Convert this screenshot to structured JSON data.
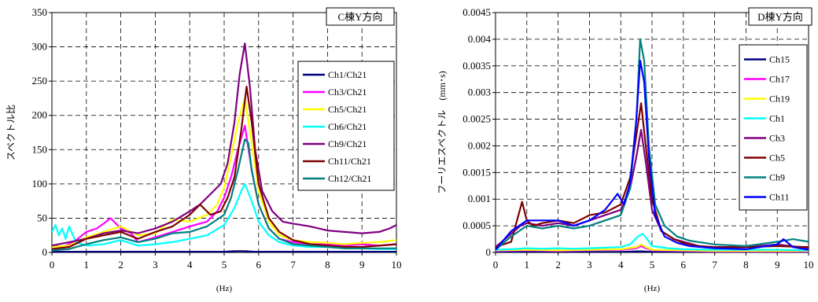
{
  "chart_data": [
    {
      "type": "line",
      "title": "C棟Y方向",
      "xlabel": "(Hz)",
      "ylabel": "スペクトル比",
      "xlim": [
        0,
        10
      ],
      "ylim": [
        0,
        350
      ],
      "xticks": [
        "0",
        "1",
        "2",
        "3",
        "4",
        "5",
        "6",
        "7",
        "8",
        "9",
        "10"
      ],
      "yticks": [
        "0",
        "50",
        "100",
        "150",
        "200",
        "250",
        "300",
        "350"
      ],
      "grid": true,
      "legend_position": "right",
      "series": [
        {
          "name": "Ch1/Ch21",
          "color": "#000080",
          "x": [
            0,
            0.5,
            1,
            1.5,
            2,
            2.5,
            3,
            3.5,
            4,
            4.5,
            5,
            5.3,
            5.6,
            5.9,
            6.5,
            7,
            8,
            9,
            10
          ],
          "y": [
            1,
            1,
            1,
            1,
            1,
            1,
            1,
            1,
            1,
            1,
            1,
            2,
            2,
            1,
            1,
            1,
            1,
            1,
            1
          ]
        },
        {
          "name": "Ch3/Ch21",
          "color": "#ff00ff",
          "x": [
            0,
            0.3,
            0.5,
            0.7,
            1,
            1.3,
            1.5,
            1.7,
            2,
            2.3,
            2.5,
            3,
            3.5,
            4,
            4.5,
            4.8,
            5,
            5.2,
            5.4,
            5.6,
            5.8,
            6,
            6.3,
            6.6,
            7,
            7.5,
            8,
            8.5,
            9,
            9.5,
            10
          ],
          "y": [
            10,
            8,
            12,
            18,
            30,
            35,
            42,
            50,
            35,
            28,
            15,
            22,
            30,
            38,
            45,
            60,
            80,
            110,
            150,
            185,
            120,
            70,
            35,
            20,
            15,
            12,
            12,
            10,
            12,
            10,
            12
          ]
        },
        {
          "name": "Ch5/Ch21",
          "color": "#ffff00",
          "x": [
            0,
            0.5,
            1,
            1.5,
            2,
            2.5,
            3,
            3.5,
            4,
            4.5,
            4.8,
            5,
            5.2,
            5.4,
            5.6,
            5.8,
            6,
            6.3,
            6.6,
            7,
            7.5,
            8,
            8.5,
            9,
            9.5,
            10
          ],
          "y": [
            8,
            10,
            22,
            30,
            38,
            25,
            28,
            48,
            45,
            55,
            70,
            95,
            140,
            190,
            225,
            160,
            90,
            45,
            25,
            18,
            15,
            14,
            12,
            14,
            15,
            18
          ]
        },
        {
          "name": "Ch6/Ch21",
          "color": "#00ffff",
          "x": [
            0,
            0.1,
            0.2,
            0.3,
            0.4,
            0.5,
            0.7,
            1,
            1.5,
            2,
            2.5,
            3,
            3.5,
            4,
            4.5,
            5,
            5.3,
            5.5,
            5.6,
            5.8,
            6,
            6.3,
            6.6,
            7,
            7.5,
            8,
            8.5,
            9,
            9.5,
            10
          ],
          "y": [
            30,
            40,
            25,
            35,
            20,
            38,
            15,
            10,
            12,
            18,
            10,
            12,
            15,
            20,
            25,
            40,
            65,
            90,
            100,
            75,
            45,
            25,
            15,
            10,
            8,
            8,
            6,
            6,
            5,
            5
          ]
        },
        {
          "name": "Ch9/Ch21",
          "color": "#800080",
          "x": [
            0,
            0.5,
            1,
            1.5,
            2,
            2.5,
            3,
            3.5,
            4,
            4.3,
            4.6,
            4.9,
            5.1,
            5.3,
            5.45,
            5.6,
            5.75,
            5.9,
            6.1,
            6.4,
            6.7,
            7,
            7.5,
            8,
            8.5,
            9,
            9.5,
            9.8,
            10
          ],
          "y": [
            10,
            15,
            20,
            28,
            32,
            28,
            35,
            45,
            60,
            70,
            85,
            100,
            130,
            190,
            260,
            305,
            240,
            150,
            90,
            60,
            45,
            42,
            38,
            32,
            30,
            28,
            30,
            35,
            40
          ]
        },
        {
          "name": "Ch11/Ch21",
          "color": "#800000",
          "x": [
            0,
            0.5,
            1,
            1.5,
            2,
            2.5,
            3,
            3.5,
            4,
            4.3,
            4.6,
            4.9,
            5.1,
            5.3,
            5.5,
            5.65,
            5.8,
            6,
            6.3,
            6.6,
            7,
            7.5,
            8,
            8.5,
            9,
            9.5,
            10
          ],
          "y": [
            5,
            8,
            20,
            25,
            30,
            20,
            30,
            38,
            55,
            70,
            55,
            60,
            80,
            110,
            180,
            242,
            190,
            100,
            50,
            30,
            18,
            12,
            10,
            8,
            8,
            10,
            12
          ]
        },
        {
          "name": "Ch12/Ch21",
          "color": "#008080",
          "x": [
            0,
            0.5,
            1,
            1.5,
            2,
            2.5,
            3,
            3.5,
            4,
            4.5,
            5,
            5.2,
            5.4,
            5.6,
            5.7,
            5.8,
            6,
            6.3,
            6.6,
            7,
            7.5,
            8,
            8.5,
            9,
            9.5,
            10
          ],
          "y": [
            3,
            5,
            12,
            18,
            22,
            15,
            20,
            28,
            30,
            38,
            55,
            80,
            120,
            165,
            160,
            120,
            70,
            35,
            20,
            12,
            10,
            8,
            6,
            6,
            6,
            6
          ]
        }
      ]
    },
    {
      "type": "line",
      "title": "D棟Y方向",
      "xlabel": "(Hz)",
      "ylabel": "フーリエスペクトル　(mm･s)",
      "xlim": [
        0,
        10
      ],
      "ylim": [
        0,
        0.0045
      ],
      "xticks": [
        "0",
        "1",
        "2",
        "3",
        "4",
        "5",
        "6",
        "7",
        "8",
        "9",
        "10"
      ],
      "yticks": [
        "0",
        "0.0005",
        "0.001",
        "0.0015",
        "0.002",
        "0.0025",
        "0.003",
        "0.0035",
        "0.004",
        "0.0045"
      ],
      "grid": true,
      "legend_position": "right",
      "series": [
        {
          "name": "Ch15",
          "color": "#000080",
          "x": [
            0,
            1,
            2,
            3,
            4,
            4.5,
            4.7,
            5,
            6,
            7,
            8,
            9,
            10
          ],
          "y": [
            1e-05,
            1e-05,
            1e-05,
            1e-05,
            1e-05,
            2e-05,
            2e-05,
            1e-05,
            1e-05,
            1e-05,
            1e-05,
            1e-05,
            1e-05
          ]
        },
        {
          "name": "Ch17",
          "color": "#ff00ff",
          "x": [
            0,
            1,
            2,
            3,
            4,
            4.5,
            4.65,
            4.8,
            5,
            6,
            7,
            8,
            9,
            10
          ],
          "y": [
            3e-05,
            4e-05,
            3e-05,
            4e-05,
            5e-05,
            8e-05,
            0.00012,
            8e-05,
            4e-05,
            3e-05,
            2e-05,
            2e-05,
            2e-05,
            2e-05
          ]
        },
        {
          "name": "Ch19",
          "color": "#ffff00",
          "x": [
            0,
            1,
            2,
            3,
            4,
            4.5,
            4.65,
            4.8,
            5,
            6,
            7,
            8,
            9,
            10
          ],
          "y": [
            4e-05,
            5e-05,
            4e-05,
            5e-05,
            6e-05,
            0.0001,
            0.00015,
            0.0001,
            5e-05,
            4e-05,
            3e-05,
            3e-05,
            3e-05,
            3e-05
          ]
        },
        {
          "name": "Ch1",
          "color": "#00ffff",
          "x": [
            0,
            0.5,
            1,
            1.5,
            2,
            2.5,
            3,
            3.5,
            4,
            4.3,
            4.55,
            4.7,
            4.85,
            5,
            5.5,
            6,
            7,
            8,
            9,
            10
          ],
          "y": [
            5e-05,
            6e-05,
            8e-05,
            7e-05,
            8e-05,
            7e-05,
            8e-05,
            9e-05,
            0.0001,
            0.00015,
            0.0003,
            0.00035,
            0.00025,
            0.00012,
            8e-05,
            6e-05,
            5e-05,
            5e-05,
            5e-05,
            4e-05
          ]
        },
        {
          "name": "Ch3",
          "color": "#800080",
          "x": [
            0,
            0.4,
            0.8,
            1,
            1.5,
            2,
            2.5,
            3,
            3.5,
            4,
            4.3,
            4.5,
            4.65,
            4.8,
            5,
            5.3,
            5.7,
            6,
            6.5,
            7,
            8,
            9,
            10
          ],
          "y": [
            0.0001,
            0.0003,
            0.0005,
            0.00055,
            0.0005,
            0.00055,
            0.0005,
            0.0006,
            0.0007,
            0.0008,
            0.0012,
            0.0018,
            0.0023,
            0.0017,
            0.0008,
            0.0004,
            0.00025,
            0.0002,
            0.00012,
            0.0001,
            0.0001,
            0.00015,
            8e-05
          ]
        },
        {
          "name": "Ch5",
          "color": "#800000",
          "x": [
            0,
            0.5,
            0.85,
            1,
            1.2,
            1.5,
            2,
            2.5,
            3,
            3.5,
            4,
            4.3,
            4.5,
            4.65,
            4.8,
            5,
            5.3,
            5.7,
            6,
            6.5,
            7,
            8,
            9,
            10
          ],
          "y": [
            0.0001,
            0.0002,
            0.00095,
            0.0006,
            0.0005,
            0.00055,
            0.0006,
            0.00055,
            0.0007,
            0.00075,
            0.0009,
            0.0014,
            0.0022,
            0.0028,
            0.002,
            0.001,
            0.0004,
            0.00025,
            0.00018,
            0.00012,
            0.0001,
            0.0001,
            0.00012,
            0.0001
          ]
        },
        {
          "name": "Ch9",
          "color": "#008080",
          "x": [
            0,
            0.5,
            1,
            1.5,
            2,
            2.5,
            3,
            3.5,
            4,
            4.3,
            4.5,
            4.62,
            4.75,
            4.9,
            5.1,
            5.4,
            5.8,
            6.2,
            7,
            8,
            9,
            9.5,
            10
          ],
          "y": [
            5e-05,
            0.0003,
            0.0005,
            0.00045,
            0.0005,
            0.00045,
            0.0005,
            0.0006,
            0.0007,
            0.0012,
            0.0025,
            0.004,
            0.0036,
            0.002,
            0.0009,
            0.0005,
            0.0003,
            0.00022,
            0.00015,
            0.00012,
            0.0002,
            0.00025,
            0.0002
          ]
        },
        {
          "name": "Ch11",
          "color": "#0000ff",
          "x": [
            0,
            0.5,
            1,
            1.5,
            2,
            2.5,
            3,
            3.5,
            3.9,
            4.1,
            4.3,
            4.5,
            4.62,
            4.75,
            4.9,
            5.1,
            5.4,
            5.8,
            6.2,
            7,
            8,
            9,
            9.2,
            9.5,
            10
          ],
          "y": [
            5e-05,
            0.0004,
            0.0006,
            0.0006,
            0.0006,
            0.0005,
            0.0006,
            0.0008,
            0.0011,
            0.0009,
            0.0013,
            0.0025,
            0.0036,
            0.0032,
            0.0018,
            0.0007,
            0.0003,
            0.00018,
            0.00012,
            8e-05,
            6e-05,
            0.00015,
            0.00025,
            0.0001,
            5e-05
          ]
        }
      ]
    }
  ]
}
